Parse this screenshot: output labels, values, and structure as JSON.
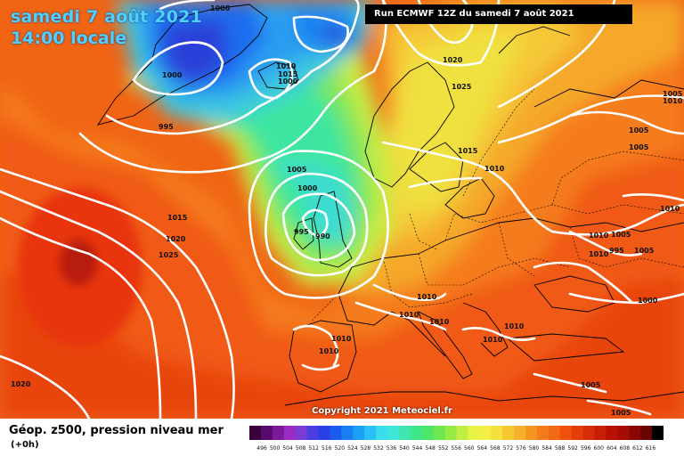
{
  "header": {
    "date": "samedi 7 août 2021",
    "time": "14:00 locale",
    "run": "Run ECMWF 12Z du samedi 7 août 2021"
  },
  "footer": {
    "copyright": "Copyright 2021 Meteociel.fr",
    "legend_title": "Géop. z500, pression niveau mer",
    "legend_sub": "(+0h)"
  },
  "colors": {
    "scale": [
      "#3a003a",
      "#5a0a6b",
      "#7a1a9a",
      "#9a2bc4",
      "#7a3cd4",
      "#4a3ee0",
      "#2a40e6",
      "#1a5cf0",
      "#1a7ef5",
      "#1aa0f5",
      "#2bc0f5",
      "#3cdcef",
      "#3ee6d8",
      "#3ee6b0",
      "#3ee68a",
      "#4ee66a",
      "#6ee650",
      "#96ea44",
      "#c0ee44",
      "#e6f244",
      "#f2ee44",
      "#f5e03c",
      "#f5c832",
      "#f5b02a",
      "#f59622",
      "#f57c1a",
      "#f56a14",
      "#f0520e",
      "#e63c0a",
      "#d82c08",
      "#c81e06",
      "#b81004",
      "#a80a04",
      "#8a0602",
      "#6a0402",
      "#000000"
    ],
    "scale_labels": [
      "496",
      "500",
      "504",
      "508",
      "512",
      "516",
      "520",
      "524",
      "528",
      "532",
      "536",
      "540",
      "544",
      "548",
      "552",
      "556",
      "560",
      "564",
      "568",
      "572",
      "576",
      "580",
      "584",
      "588",
      "592",
      "596",
      "600",
      "604",
      "608",
      "612",
      "616"
    ]
  },
  "isobars": [
    {
      "label": "1000"
    },
    {
      "label": "1000"
    },
    {
      "label": "1000"
    },
    {
      "label": "1010"
    },
    {
      "label": "1015"
    },
    {
      "label": "995"
    },
    {
      "label": "1005"
    },
    {
      "label": "1000"
    },
    {
      "label": "995"
    },
    {
      "label": "990"
    },
    {
      "label": "1015"
    },
    {
      "label": "1020"
    },
    {
      "label": "1025"
    },
    {
      "label": "1020"
    },
    {
      "label": "1025"
    },
    {
      "label": "1015"
    },
    {
      "label": "1010"
    },
    {
      "label": "1005"
    },
    {
      "label": "1005"
    },
    {
      "label": "1010"
    },
    {
      "label": "1010"
    },
    {
      "label": "1005"
    },
    {
      "label": "995"
    },
    {
      "label": "1005"
    },
    {
      "label": "1000"
    },
    {
      "label": "1010"
    },
    {
      "label": "1010"
    },
    {
      "label": "1010"
    },
    {
      "label": "1010"
    },
    {
      "label": "1010"
    },
    {
      "label": "1010"
    },
    {
      "label": "1010"
    },
    {
      "label": "1010"
    },
    {
      "label": "1005"
    },
    {
      "label": "1005"
    },
    {
      "label": "1020"
    },
    {
      "label": "1010"
    },
    {
      "label": "1005"
    }
  ]
}
